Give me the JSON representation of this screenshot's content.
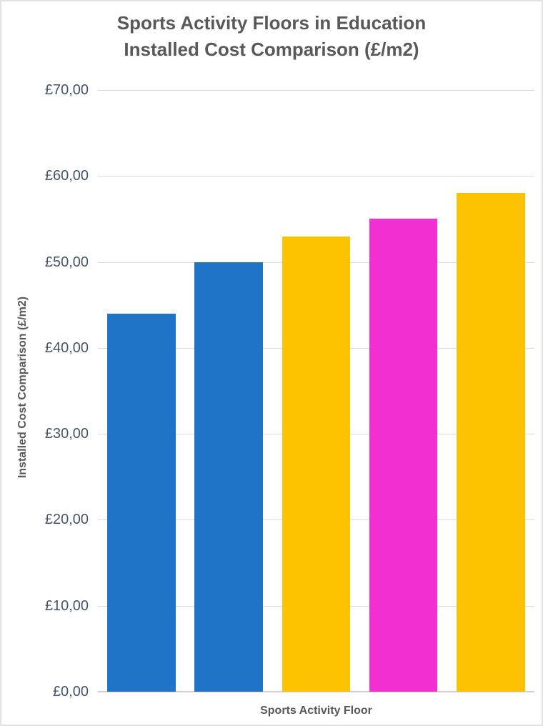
{
  "title": {
    "line1": "Sports Activity Floors in Education",
    "line2": "Installed Cost Comparison (£/m2)"
  },
  "chart_data": {
    "type": "bar",
    "title": "Sports Activity Floors in Education Installed Cost Comparison (£/m2)",
    "xlabel": "Sports Activity Floor",
    "ylabel": "Installed Cost Comparison (£/m2)",
    "values": [
      44,
      50,
      53,
      55,
      58
    ],
    "bar_colors": [
      "#2074C8",
      "#2074C8",
      "#FDC300",
      "#F230D2",
      "#FDC300"
    ],
    "ylim": [
      0,
      70
    ],
    "ytick_interval": 10,
    "ytick_labels": [
      "£0,00",
      "£10,00",
      "£20,00",
      "£30,00",
      "£40,00",
      "£50,00",
      "£60,00",
      "£70,00"
    ],
    "grid": true,
    "legend": false,
    "xtick_labels_visible": false
  },
  "colors": {
    "gridline": "#D9D9D9",
    "axis_line": "#CFCFCF",
    "tick_text": "#44546A",
    "title_text": "#595959",
    "background": "#FFFFFF",
    "frame_border": "#E2E2E2"
  }
}
